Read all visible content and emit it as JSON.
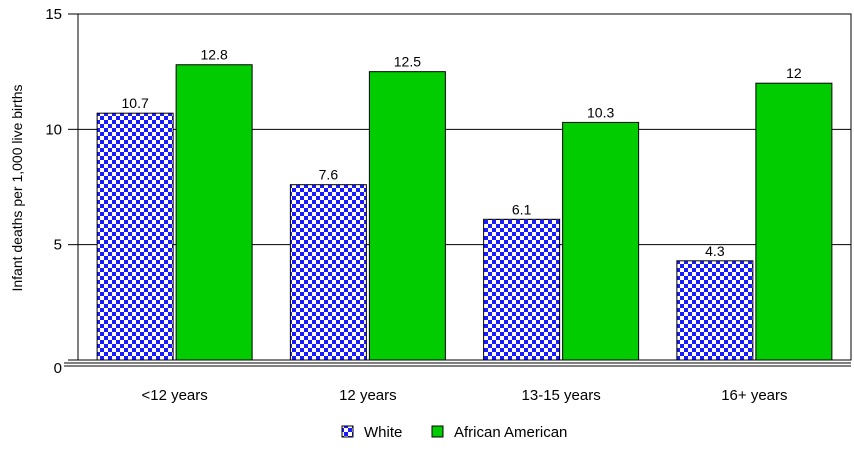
{
  "chart_data": {
    "type": "bar",
    "title": "",
    "xlabel": "",
    "ylabel": "Infant deaths per 1,000 live births",
    "ylim": [
      0,
      15
    ],
    "yticks": [
      0,
      5,
      10,
      15
    ],
    "grid": true,
    "legend": "bottom",
    "categories": [
      "<12 years",
      "12 years",
      "13-15 years",
      "16+ years"
    ],
    "series": [
      {
        "name": "White",
        "values": [
          10.7,
          7.6,
          6.1,
          4.3
        ],
        "color": "#1a1aff",
        "pattern": "checkerboard"
      },
      {
        "name": "African American",
        "values": [
          12.8,
          12.5,
          10.3,
          12
        ],
        "color": "#00cc00",
        "pattern": "solid"
      }
    ],
    "data_labels": [
      [
        "10.7",
        "7.6",
        "6.1",
        "4.3"
      ],
      [
        "12.8",
        "12.5",
        "10.3",
        "12"
      ]
    ]
  }
}
